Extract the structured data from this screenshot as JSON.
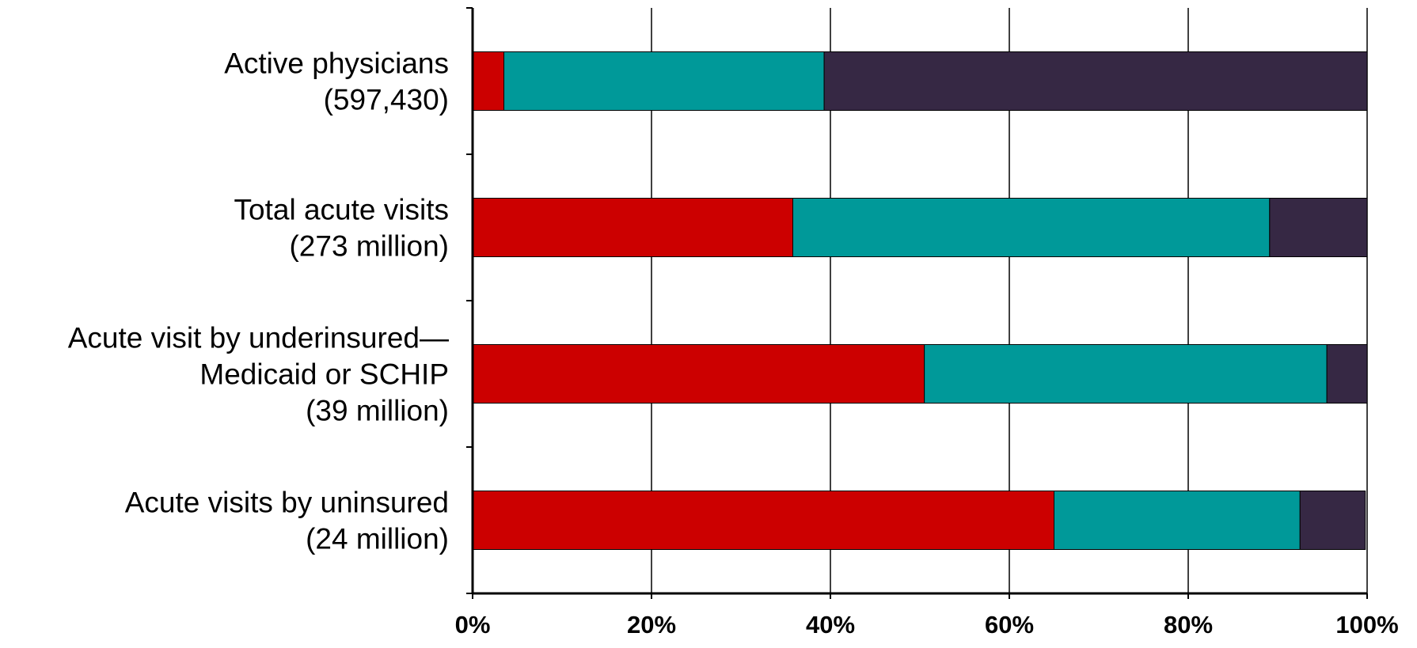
{
  "chart_data": {
    "type": "bar",
    "orientation": "horizontal",
    "stacked": "percent",
    "title": "",
    "xlabel": "",
    "ylabel": "",
    "xlim": [
      0,
      100
    ],
    "grid": "vertical",
    "legend": "none",
    "categories": [
      [
        "Active physicians",
        "(597,430)"
      ],
      [
        "Total acute visits",
        "(273 million)"
      ],
      [
        "Acute visit by underinsured—",
        "Medicaid or SCHIP",
        "(39 million)"
      ],
      [
        "Acute  visits by uninsured",
        "(24 million)"
      ]
    ],
    "x_ticks": [
      "0%",
      "20%",
      "40%",
      "60%",
      "80%",
      "100%"
    ],
    "series": [
      {
        "color": "#cc0000",
        "values": [
          3.5,
          35.8,
          50.5,
          65.0
        ]
      },
      {
        "color": "#009999",
        "values": [
          35.8,
          53.3,
          45.0,
          27.5
        ]
      },
      {
        "color": "#362844",
        "values": [
          60.7,
          10.9,
          4.5,
          7.3
        ]
      }
    ]
  }
}
